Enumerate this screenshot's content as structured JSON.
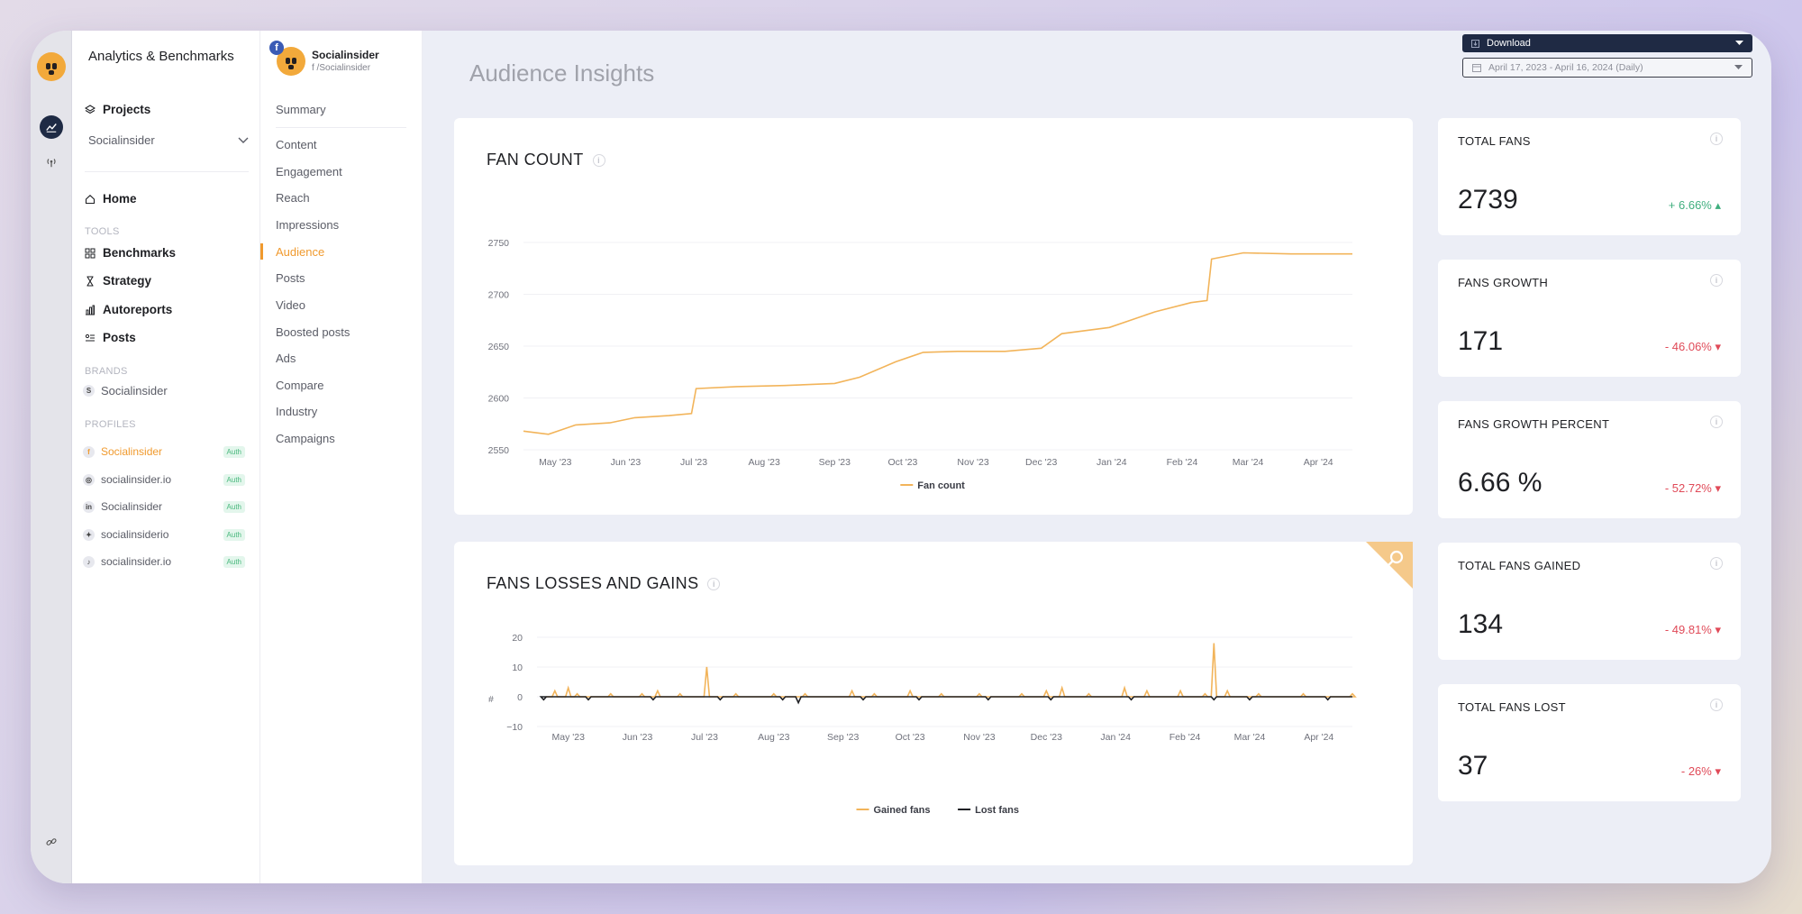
{
  "app": {
    "title": "Analytics & Benchmarks"
  },
  "sidebar": {
    "projects_label": "Projects",
    "project_select": "Socialinsider",
    "home_label": "Home",
    "tools_label": "TOOLS",
    "tools": [
      "Benchmarks",
      "Strategy",
      "Autoreports",
      "Posts"
    ],
    "brands_label": "BRANDS",
    "brand": {
      "initial": "S",
      "name": "Socialinsider"
    },
    "profiles_label": "PROFILES",
    "profiles": [
      {
        "badge": "f",
        "name": "Socialinsider",
        "auth": "Auth"
      },
      {
        "badge": "◎",
        "name": "socialinsider.io",
        "auth": "Auth"
      },
      {
        "badge": "in",
        "name": "Socialinsider",
        "auth": "Auth"
      },
      {
        "badge": "✦",
        "name": "socialinsiderio",
        "auth": "Auth"
      },
      {
        "badge": "♪",
        "name": "socialinsider.io",
        "auth": "Auth"
      }
    ]
  },
  "account": {
    "badge": "f",
    "name": "Socialinsider",
    "handle": "f /Socialinsider"
  },
  "sections": [
    "Summary",
    "Content",
    "Engagement",
    "Reach",
    "Impressions",
    "Audience",
    "Posts",
    "Video",
    "Boosted posts",
    "Ads",
    "Compare",
    "Industry",
    "Campaigns"
  ],
  "header": {
    "page_title": "Audience Insights",
    "download_label": "Download",
    "date_range": "April 17, 2023 - April 16, 2024 (Daily)"
  },
  "stats": [
    {
      "title": "TOTAL FANS",
      "value": "2739",
      "change": "+ 6.66% ▴",
      "trend": "up"
    },
    {
      "title": "FANS GROWTH",
      "value": "171",
      "change": "- 46.06% ▾",
      "trend": "down"
    },
    {
      "title": "FANS GROWTH PERCENT",
      "value": "6.66 %",
      "change": "- 52.72% ▾",
      "trend": "down"
    },
    {
      "title": "TOTAL FANS GAINED",
      "value": "134",
      "change": "- 49.81% ▾",
      "trend": "down"
    },
    {
      "title": "TOTAL FANS LOST",
      "value": "37",
      "change": "- 26% ▾",
      "trend": "down"
    }
  ],
  "colors": {
    "accent": "#f09a2e",
    "gained": "#f2b45a",
    "lost": "#1f2024",
    "nav_dark": "#1f2a44"
  },
  "chart_data": [
    {
      "type": "line",
      "title": "FAN COUNT",
      "x_ticks": [
        "May '23",
        "Jun '23",
        "Jul '23",
        "Aug '23",
        "Sep '23",
        "Oct '23",
        "Nov '23",
        "Dec '23",
        "Jan '24",
        "Feb '24",
        "Mar '24",
        "Apr '24"
      ],
      "y_ticks": [
        2550,
        2600,
        2650,
        2700,
        2750
      ],
      "ylim": [
        2550,
        2750
      ],
      "legend_position": "bottom",
      "series": [
        {
          "name": "Fan count",
          "color": "#f2b45a",
          "points": [
            [
              "2023-04-17",
              2568
            ],
            [
              "2023-04-28",
              2565
            ],
            [
              "2023-05-10",
              2574
            ],
            [
              "2023-05-25",
              2576
            ],
            [
              "2023-06-05",
              2581
            ],
            [
              "2023-06-20",
              2583
            ],
            [
              "2023-06-30",
              2585
            ],
            [
              "2023-07-02",
              2609
            ],
            [
              "2023-07-20",
              2611
            ],
            [
              "2023-08-10",
              2612
            ],
            [
              "2023-09-01",
              2614
            ],
            [
              "2023-09-12",
              2620
            ],
            [
              "2023-09-28",
              2635
            ],
            [
              "2023-10-10",
              2644
            ],
            [
              "2023-10-25",
              2645
            ],
            [
              "2023-11-15",
              2645
            ],
            [
              "2023-12-01",
              2648
            ],
            [
              "2023-12-10",
              2662
            ],
            [
              "2023-12-31",
              2668
            ],
            [
              "2024-01-20",
              2683
            ],
            [
              "2024-02-05",
              2692
            ],
            [
              "2024-02-12",
              2694
            ],
            [
              "2024-02-14",
              2734
            ],
            [
              "2024-02-28",
              2740
            ],
            [
              "2024-03-20",
              2739
            ],
            [
              "2024-04-16",
              2739
            ]
          ]
        }
      ]
    },
    {
      "type": "line",
      "title": "FANS LOSSES AND GAINS",
      "x_ticks": [
        "May '23",
        "Jun '23",
        "Jul '23",
        "Aug '23",
        "Sep '23",
        "Oct '23",
        "Nov '23",
        "Dec '23",
        "Jan '24",
        "Feb '24",
        "Mar '24",
        "Apr '24"
      ],
      "y_ticks": [
        20,
        10,
        0,
        -10
      ],
      "ylim": [
        -10,
        20
      ],
      "legend_position": "bottom",
      "series": [
        {
          "name": "Gained fans",
          "color": "#f2b45a",
          "points": [
            [
              "2023-04-25",
              2
            ],
            [
              "2023-05-01",
              3
            ],
            [
              "2023-05-05",
              1
            ],
            [
              "2023-05-20",
              1
            ],
            [
              "2023-06-03",
              1
            ],
            [
              "2023-06-10",
              2
            ],
            [
              "2023-06-20",
              1
            ],
            [
              "2023-07-02",
              10
            ],
            [
              "2023-07-15",
              1
            ],
            [
              "2023-08-01",
              1
            ],
            [
              "2023-08-15",
              1
            ],
            [
              "2023-09-05",
              2
            ],
            [
              "2023-09-15",
              1
            ],
            [
              "2023-10-01",
              2
            ],
            [
              "2023-10-15",
              1
            ],
            [
              "2023-11-01",
              1
            ],
            [
              "2023-11-20",
              1
            ],
            [
              "2023-12-01",
              2
            ],
            [
              "2023-12-08",
              3
            ],
            [
              "2023-12-20",
              1
            ],
            [
              "2024-01-05",
              3
            ],
            [
              "2024-01-15",
              2
            ],
            [
              "2024-01-30",
              2
            ],
            [
              "2024-02-10",
              1
            ],
            [
              "2024-02-14",
              18
            ],
            [
              "2024-02-20",
              2
            ],
            [
              "2024-03-05",
              1
            ],
            [
              "2024-03-25",
              1
            ],
            [
              "2024-04-16",
              1
            ]
          ]
        },
        {
          "name": "Lost fans",
          "color": "#1f2024",
          "points": [
            [
              "2023-04-20",
              -1
            ],
            [
              "2023-05-10",
              -1
            ],
            [
              "2023-06-08",
              -1
            ],
            [
              "2023-07-08",
              -1
            ],
            [
              "2023-08-05",
              -1
            ],
            [
              "2023-08-12",
              -2
            ],
            [
              "2023-09-10",
              -1
            ],
            [
              "2023-10-05",
              -1
            ],
            [
              "2023-11-05",
              -1
            ],
            [
              "2023-12-03",
              -1
            ],
            [
              "2024-01-08",
              -1
            ],
            [
              "2024-02-14",
              -1
            ],
            [
              "2024-03-01",
              -1
            ],
            [
              "2024-04-05",
              -1
            ]
          ]
        }
      ]
    }
  ]
}
